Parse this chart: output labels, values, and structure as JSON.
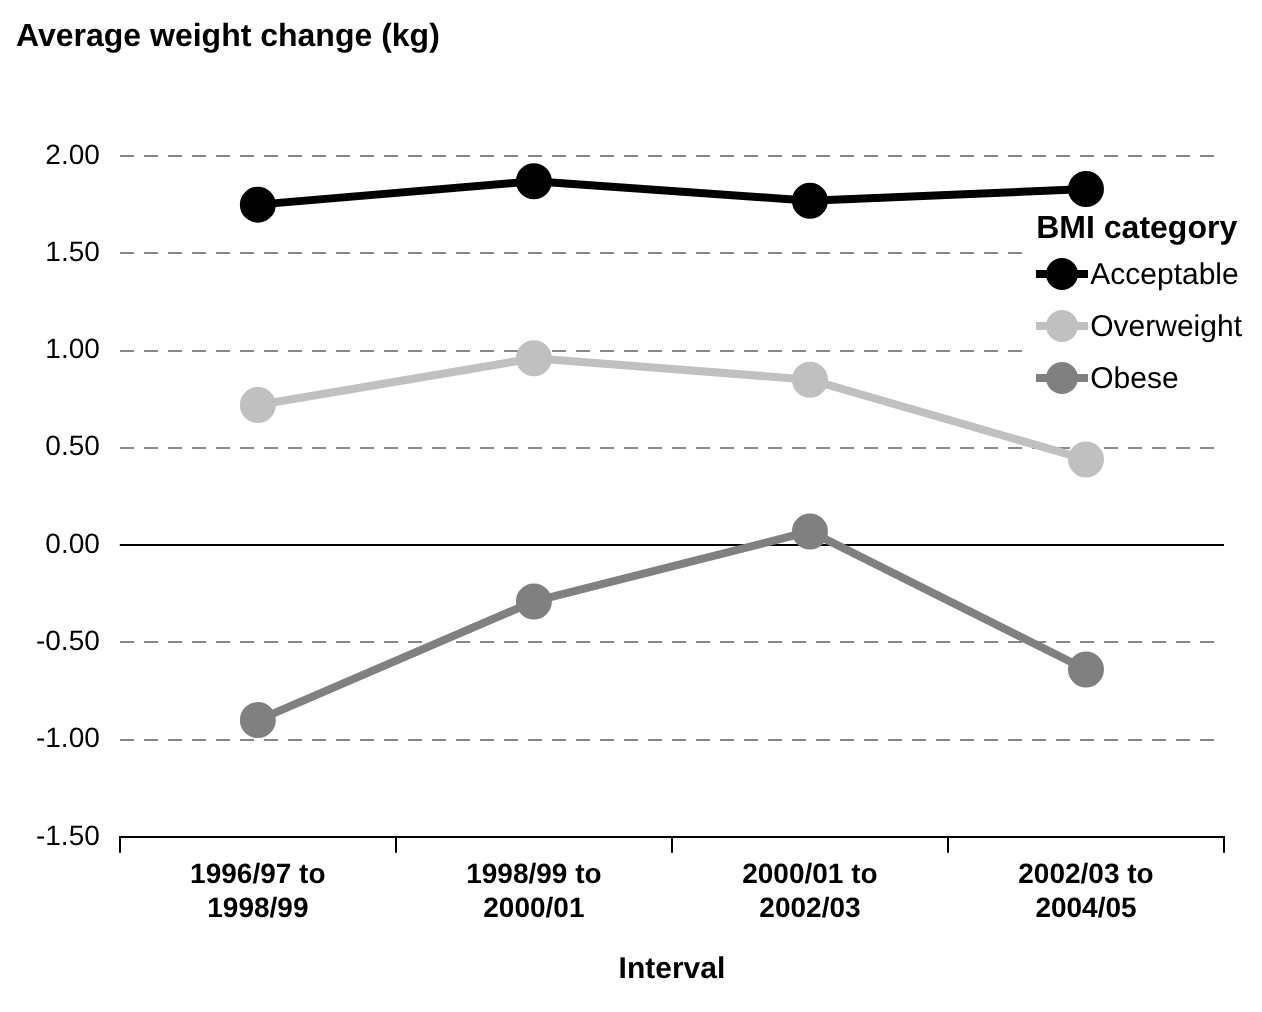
{
  "chart_data": {
    "type": "line",
    "ylabel": "Average weight change (kg)",
    "xlabel": "Interval",
    "legend_title": "BMI category",
    "categories": [
      "1996/97 to 1998/99",
      "1998/99 to 2000/01",
      "2000/01 to 2002/03",
      "2002/03 to 2004/05"
    ],
    "series": [
      {
        "name": "Acceptable",
        "color": "#000000",
        "values": [
          1.75,
          1.87,
          1.77,
          1.83
        ]
      },
      {
        "name": "Overweight",
        "color": "#c0c0c0",
        "values": [
          0.72,
          0.96,
          0.85,
          0.44
        ]
      },
      {
        "name": "Obese",
        "color": "#808080",
        "values": [
          -0.9,
          -0.29,
          0.07,
          -0.64
        ]
      }
    ],
    "ylim": [
      -1.5,
      2
    ],
    "yticks": [
      {
        "value": -1.5,
        "label": "-1.50"
      },
      {
        "value": -1,
        "label": "-1.00"
      },
      {
        "value": -0.5,
        "label": "-0.50"
      },
      {
        "value": 0,
        "label": "0.00"
      },
      {
        "value": 0.5,
        "label": "0.50"
      },
      {
        "value": 1,
        "label": "1.00"
      },
      {
        "value": 1.5,
        "label": "1.50"
      },
      {
        "value": 2,
        "label": "2.00"
      }
    ],
    "ref_lines": [
      {
        "axis": "y",
        "value": 0,
        "color": "#000000"
      }
    ],
    "grid": "y",
    "legend": "top right",
    "marker": "circle",
    "line_style": "solid"
  }
}
